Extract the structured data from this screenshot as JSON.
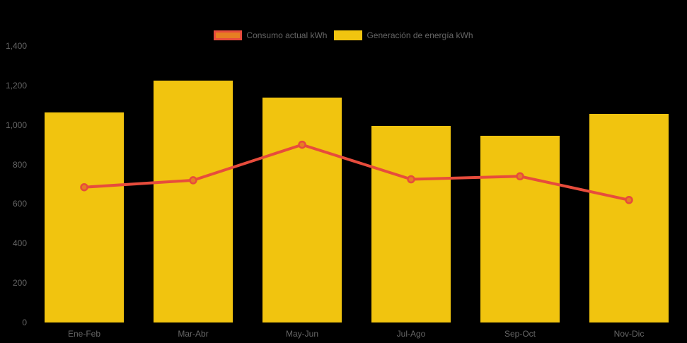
{
  "chart_data": {
    "type": "combo",
    "title": "",
    "categories": [
      "Ene-Feb",
      "Mar-Abr",
      "May-Jun",
      "Jul-Ago",
      "Sep-Oct",
      "Nov-Dic"
    ],
    "series": [
      {
        "name": "Consumo actual kWh",
        "type": "line",
        "values": [
          685,
          720,
          900,
          725,
          740,
          620
        ],
        "line_color": "#e74c3c",
        "marker_fill": "#e67e22",
        "marker_border": "#e74c3c"
      },
      {
        "name": "Generación de energía kWh",
        "type": "bar",
        "values": [
          1065,
          1225,
          1140,
          995,
          945,
          1055
        ],
        "fill_color": "#f1c40f"
      }
    ],
    "y_axis": {
      "min": 0,
      "max": 1400,
      "step": 200,
      "tick_labels": [
        "0",
        "200",
        "400",
        "600",
        "800",
        "1,000",
        "1,200",
        "1,400"
      ]
    },
    "legend_position": "top",
    "grid": false,
    "colors": {
      "background": "#000000",
      "text": "#666666"
    }
  }
}
